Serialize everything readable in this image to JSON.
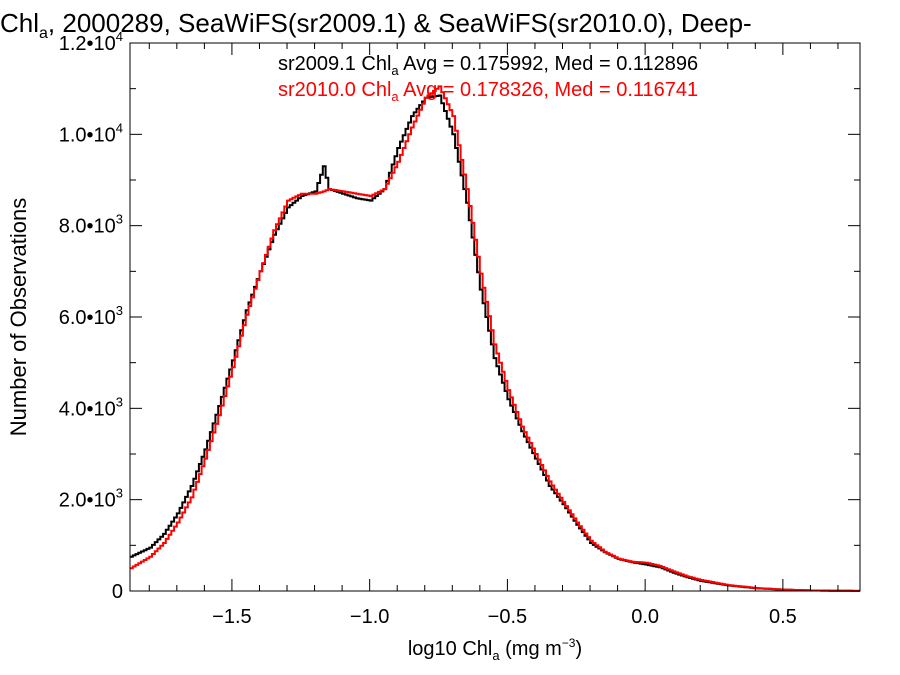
{
  "chart_data": {
    "type": "line",
    "title": {
      "prefix": "Chl",
      "prefix_sub": "a",
      "rest": ", 2000289, SeaWiFS(sr2009.1) & SeaWiFS(sr2010.0), Deep-"
    },
    "xlabel": {
      "pre": "log10 Chl",
      "sub": "a",
      "mid": " (mg m",
      "sup": "−3",
      "post": ")"
    },
    "ylabel": "Number of Observations",
    "xlim": [
      -1.87,
      0.78
    ],
    "ylim": [
      0,
      12000
    ],
    "x_ticks": [
      {
        "value": -1.5,
        "label": "−1.5"
      },
      {
        "value": -1.0,
        "label": "−1.0"
      },
      {
        "value": -0.5,
        "label": "−0.5"
      },
      {
        "value": 0.0,
        "label": "0.0"
      },
      {
        "value": 0.5,
        "label": "0.5"
      }
    ],
    "y_ticks": [
      {
        "value": 0,
        "mant": "0",
        "exp": ""
      },
      {
        "value": 2000,
        "mant": "2.0•10",
        "exp": "3"
      },
      {
        "value": 4000,
        "mant": "4.0•10",
        "exp": "3"
      },
      {
        "value": 6000,
        "mant": "6.0•10",
        "exp": "3"
      },
      {
        "value": 8000,
        "mant": "8.0•10",
        "exp": "3"
      },
      {
        "value": 10000,
        "mant": "1.0•10",
        "exp": "4"
      },
      {
        "value": 12000,
        "mant": "1.2•10",
        "exp": "4"
      }
    ],
    "series": [
      {
        "label_parts": {
          "pre": "sr2009.1 Chl",
          "sub": "a",
          "post": " Avg = 0.175992, Med = 0.112896"
        },
        "color": "#000000",
        "x": [
          -1.87,
          -1.8,
          -1.75,
          -1.7,
          -1.65,
          -1.6,
          -1.55,
          -1.5,
          -1.45,
          -1.4,
          -1.35,
          -1.3,
          -1.25,
          -1.2,
          -1.17,
          -1.15,
          -1.1,
          -1.05,
          -1.0,
          -0.95,
          -0.9,
          -0.85,
          -0.8,
          -0.75,
          -0.7,
          -0.65,
          -0.6,
          -0.55,
          -0.5,
          -0.45,
          -0.4,
          -0.35,
          -0.3,
          -0.25,
          -0.2,
          -0.15,
          -0.1,
          -0.05,
          0.0,
          0.05,
          0.1,
          0.15,
          0.2,
          0.3,
          0.4,
          0.5,
          0.6,
          0.7,
          0.78
        ],
        "y": [
          750,
          950,
          1250,
          1700,
          2300,
          3100,
          4050,
          5050,
          6150,
          7000,
          7800,
          8400,
          8650,
          8750,
          9300,
          8800,
          8700,
          8600,
          8550,
          8800,
          9700,
          10400,
          10800,
          10850,
          10000,
          8500,
          6600,
          5100,
          4200,
          3500,
          2900,
          2300,
          1900,
          1450,
          1050,
          850,
          700,
          630,
          580,
          520,
          400,
          300,
          220,
          120,
          60,
          30,
          12,
          5,
          2
        ]
      },
      {
        "label_parts": {
          "pre": "sr2010.0 Chl",
          "sub": "a",
          "post": " Avg = 0.178326, Med = 0.116741"
        },
        "color": "#ff0000",
        "x": [
          -1.87,
          -1.8,
          -1.75,
          -1.7,
          -1.65,
          -1.6,
          -1.55,
          -1.5,
          -1.45,
          -1.4,
          -1.35,
          -1.3,
          -1.25,
          -1.2,
          -1.17,
          -1.15,
          -1.1,
          -1.05,
          -1.0,
          -0.95,
          -0.9,
          -0.85,
          -0.8,
          -0.75,
          -0.7,
          -0.65,
          -0.6,
          -0.55,
          -0.5,
          -0.45,
          -0.4,
          -0.35,
          -0.3,
          -0.25,
          -0.2,
          -0.15,
          -0.1,
          -0.05,
          0.0,
          0.05,
          0.1,
          0.15,
          0.2,
          0.3,
          0.4,
          0.5,
          0.6,
          0.7,
          0.78
        ],
        "y": [
          500,
          750,
          1050,
          1500,
          2050,
          2900,
          3850,
          4900,
          6050,
          7000,
          7900,
          8550,
          8700,
          8700,
          8750,
          8800,
          8750,
          8700,
          8650,
          8800,
          9400,
          10150,
          10800,
          11050,
          10400,
          8800,
          6950,
          5400,
          4400,
          3600,
          3000,
          2400,
          1950,
          1500,
          1100,
          860,
          710,
          640,
          620,
          550,
          430,
          320,
          240,
          130,
          65,
          30,
          12,
          5,
          2
        ]
      }
    ],
    "grid": false,
    "legend_position": "top-right"
  }
}
